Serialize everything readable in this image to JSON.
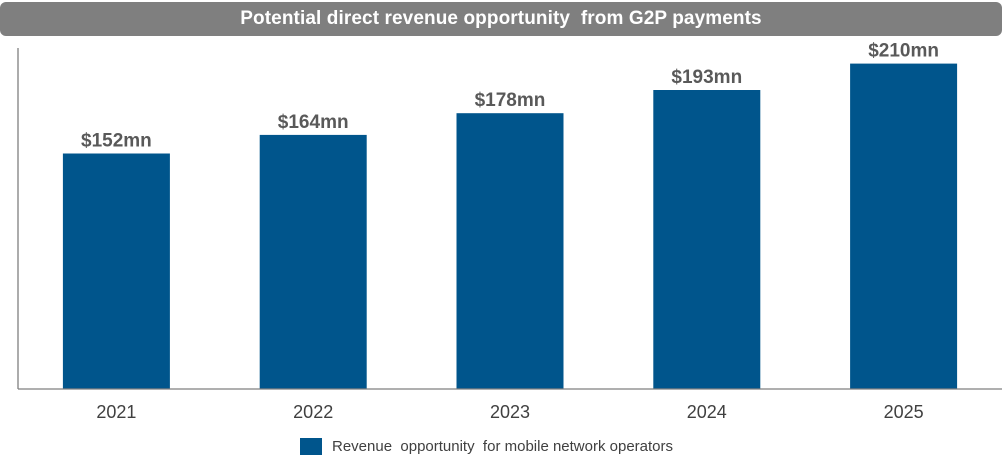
{
  "chart_data": {
    "type": "bar",
    "title": "Potential direct revenue opportunity  from G2P payments",
    "categories": [
      "2021",
      "2022",
      "2023",
      "2024",
      "2025"
    ],
    "series": [
      {
        "name": "Revenue  opportunity  for mobile network operators",
        "values": [
          152,
          164,
          178,
          193,
          210
        ],
        "labels": [
          "$152mn",
          "$164mn",
          "$178mn",
          "$193mn",
          "$210mn"
        ],
        "color": "#00558c"
      }
    ],
    "xlabel": "",
    "ylabel": "",
    "ylim": [
      0,
      213
    ],
    "grid": false,
    "legend_position": "bottom"
  }
}
